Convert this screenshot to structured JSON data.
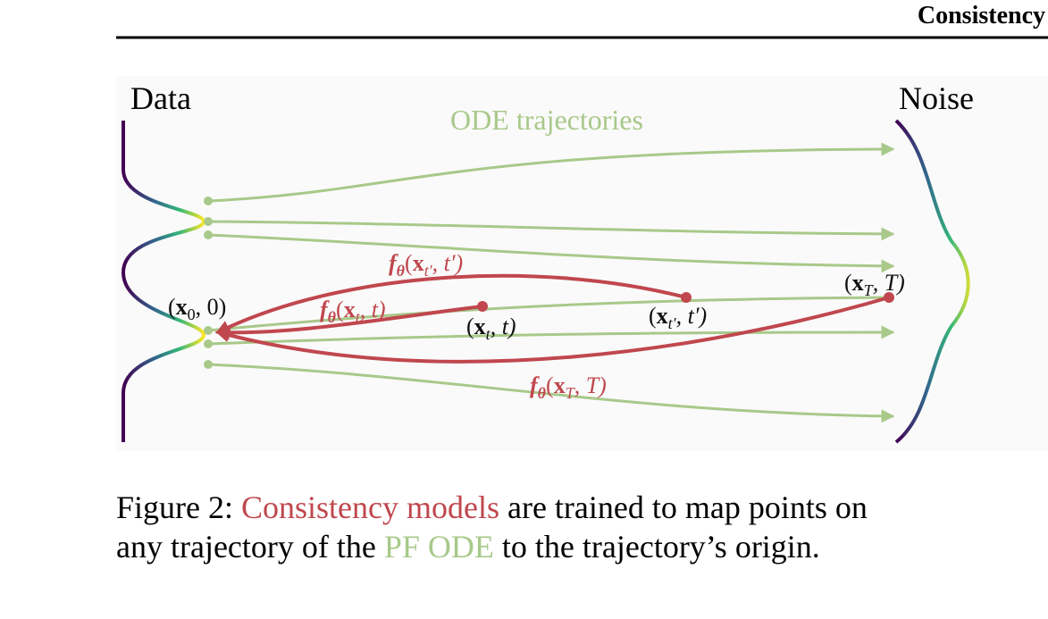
{
  "header": {
    "title": "Consistency"
  },
  "figure": {
    "data_label": "Data",
    "noise_label": "Noise",
    "trajectories_label": "ODE trajectories",
    "labels": {
      "x0": [
        "(",
        "x",
        "0",
        ", 0)"
      ],
      "f_xtp": [
        "f",
        "θ",
        "(",
        "x",
        "t′",
        ", t′)"
      ],
      "f_xt": [
        "f",
        "θ",
        "(",
        "x",
        "t",
        ", t)"
      ],
      "xt": [
        "(",
        "x",
        "t",
        ", t)"
      ],
      "xtp": [
        "(",
        "x",
        "t′",
        ", t′)"
      ],
      "xT": [
        "(",
        "x",
        "T",
        ", T)"
      ],
      "f_xT": [
        "f",
        "θ",
        "(",
        "x",
        "T",
        ", T)"
      ]
    }
  },
  "caption": [
    "Figure 2: ",
    "Consistency models",
    " are trained to map points on",
    "any trajectory of the ",
    "PF ODE",
    " to the trajectory’s origin."
  ]
}
